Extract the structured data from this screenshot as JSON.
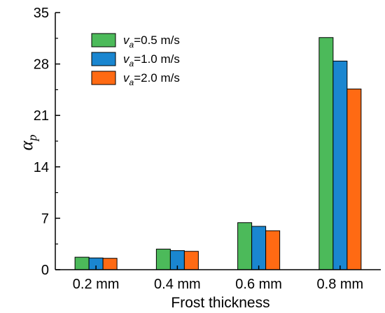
{
  "chart_data": {
    "type": "bar",
    "xlabel": "Frost thickness",
    "ylabel": {
      "symbol": "α",
      "subscript": "p"
    },
    "ylim": [
      0,
      35
    ],
    "yticks": [
      "0",
      "7",
      "14",
      "21",
      "28",
      "35"
    ],
    "categories": [
      "0.2 mm",
      "0.4 mm",
      "0.6 mm",
      "0.8 mm"
    ],
    "legend_position": "top-left",
    "grid": false,
    "series": [
      {
        "name": {
          "var": "v",
          "sub": "a",
          "text": "=0.5 m/s"
        },
        "color": "#4cba5a",
        "values": [
          1.7,
          2.8,
          6.4,
          31.6
        ]
      },
      {
        "name": {
          "var": "v",
          "sub": "a",
          "text": "=1.0 m/s"
        },
        "color": "#1a86d0",
        "values": [
          1.6,
          2.6,
          5.9,
          28.4
        ]
      },
      {
        "name": {
          "var": "v",
          "sub": "a",
          "text": "=2.0 m/s"
        },
        "color": "#ff6a13",
        "values": [
          1.55,
          2.5,
          5.3,
          24.6
        ]
      }
    ]
  }
}
